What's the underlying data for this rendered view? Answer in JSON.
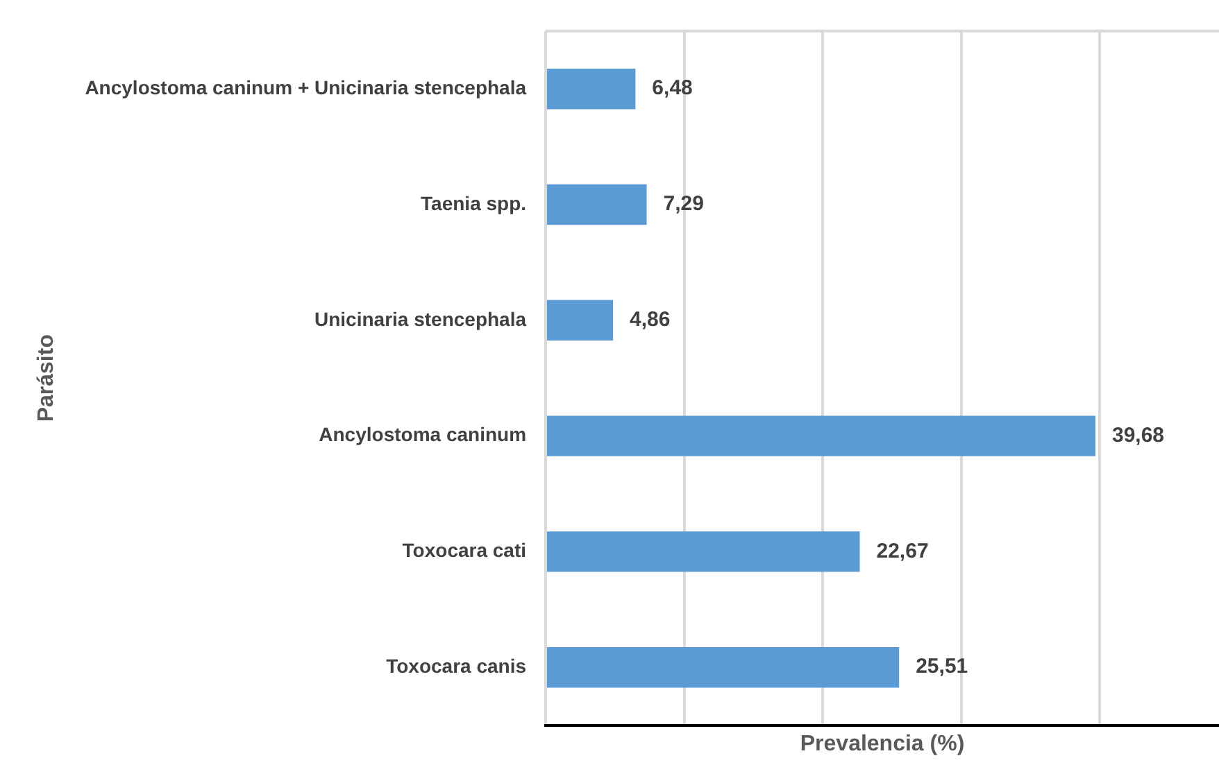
{
  "chart_data": {
    "type": "bar",
    "orientation": "horizontal",
    "xlabel": "Prevalencia (%)",
    "ylabel": "Parásito",
    "categories": [
      "Ancylostoma caninum + Unicinaria stencephala",
      "Taenia spp.",
      "Unicinaria stencephala",
      "Ancylostoma caninum",
      "Toxocara cati",
      "Toxocara canis"
    ],
    "values": [
      6.48,
      7.29,
      4.86,
      39.68,
      22.67,
      25.51
    ],
    "color": "#5b9bd5",
    "value_labels": [
      "6,48",
      "7,29",
      "4,86",
      "39,68",
      "22,67",
      "25,51"
    ],
    "xlim": [
      0,
      48.6
    ],
    "xticks": [
      {
        "value": 0,
        "label": null
      },
      {
        "value": 10,
        "label": null
      },
      {
        "value": 20,
        "label": null
      },
      {
        "value": 30,
        "label": null
      },
      {
        "value": 40,
        "label": null
      }
    ],
    "grid": "x",
    "tick_labels": "y",
    "legend": false
  }
}
